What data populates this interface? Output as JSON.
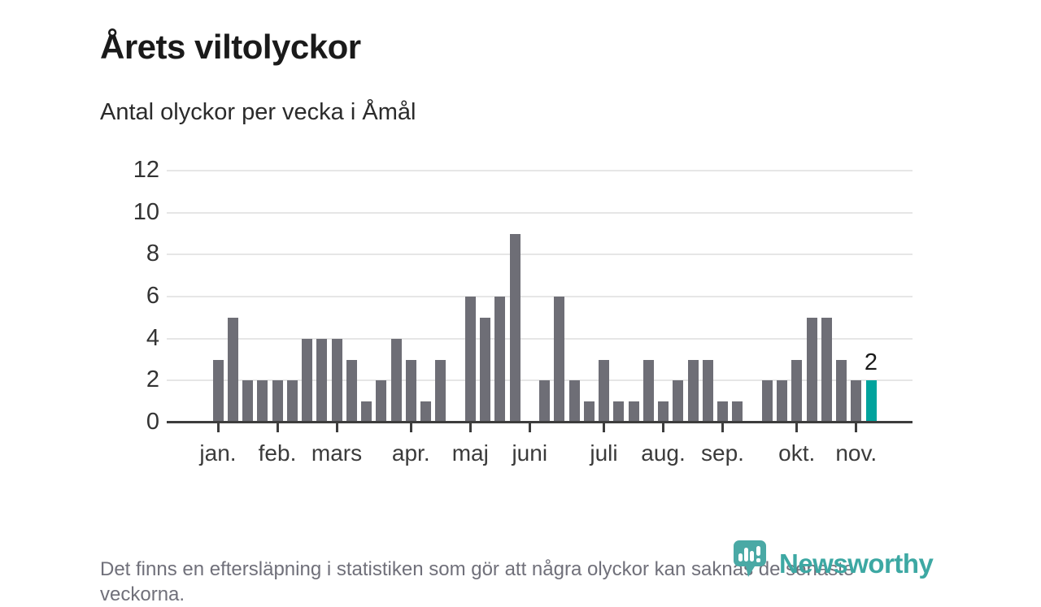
{
  "page": {
    "title": "Årets viltolyckor",
    "subtitle": "Antal olyckor per vecka i Åmål",
    "footnote": "Det finns en eftersläpning i statistiken som gör att några olyckor kan saknas de senaste veckorna."
  },
  "logo": {
    "text": "Newsworthy",
    "color": "#3da8a3",
    "icon": "speech-bubble-bar-chart-exclamation"
  },
  "chart_data": {
    "type": "bar",
    "title": "Årets viltolyckor",
    "subtitle": "Antal olyckor per vecka i Åmål",
    "x_unit": "week",
    "x_range_note": "45 weeks, January through November",
    "values": [
      3,
      5,
      2,
      2,
      2,
      2,
      4,
      4,
      4,
      3,
      1,
      2,
      4,
      3,
      1,
      3,
      0,
      6,
      5,
      6,
      9,
      0,
      2,
      6,
      2,
      1,
      3,
      1,
      1,
      3,
      1,
      2,
      3,
      3,
      1,
      1,
      0,
      2,
      2,
      3,
      5,
      5,
      3,
      2,
      2
    ],
    "month_ticks": [
      {
        "label": "jan.",
        "week_index": 0
      },
      {
        "label": "feb.",
        "week_index": 4
      },
      {
        "label": "mars",
        "week_index": 8
      },
      {
        "label": "apr.",
        "week_index": 13
      },
      {
        "label": "maj",
        "week_index": 17
      },
      {
        "label": "juni",
        "week_index": 21
      },
      {
        "label": "juli",
        "week_index": 26
      },
      {
        "label": "aug.",
        "week_index": 30
      },
      {
        "label": "sep.",
        "week_index": 34
      },
      {
        "label": "okt.",
        "week_index": 39
      },
      {
        "label": "nov.",
        "week_index": 43
      }
    ],
    "yticks": [
      0,
      2,
      4,
      6,
      8,
      10,
      12
    ],
    "ylim": [
      0,
      12
    ],
    "grid": true,
    "legend": "none",
    "bar_color": "#6e6e76",
    "highlight_last": true,
    "highlight_color": "#00a39d",
    "last_value_label": "2"
  }
}
